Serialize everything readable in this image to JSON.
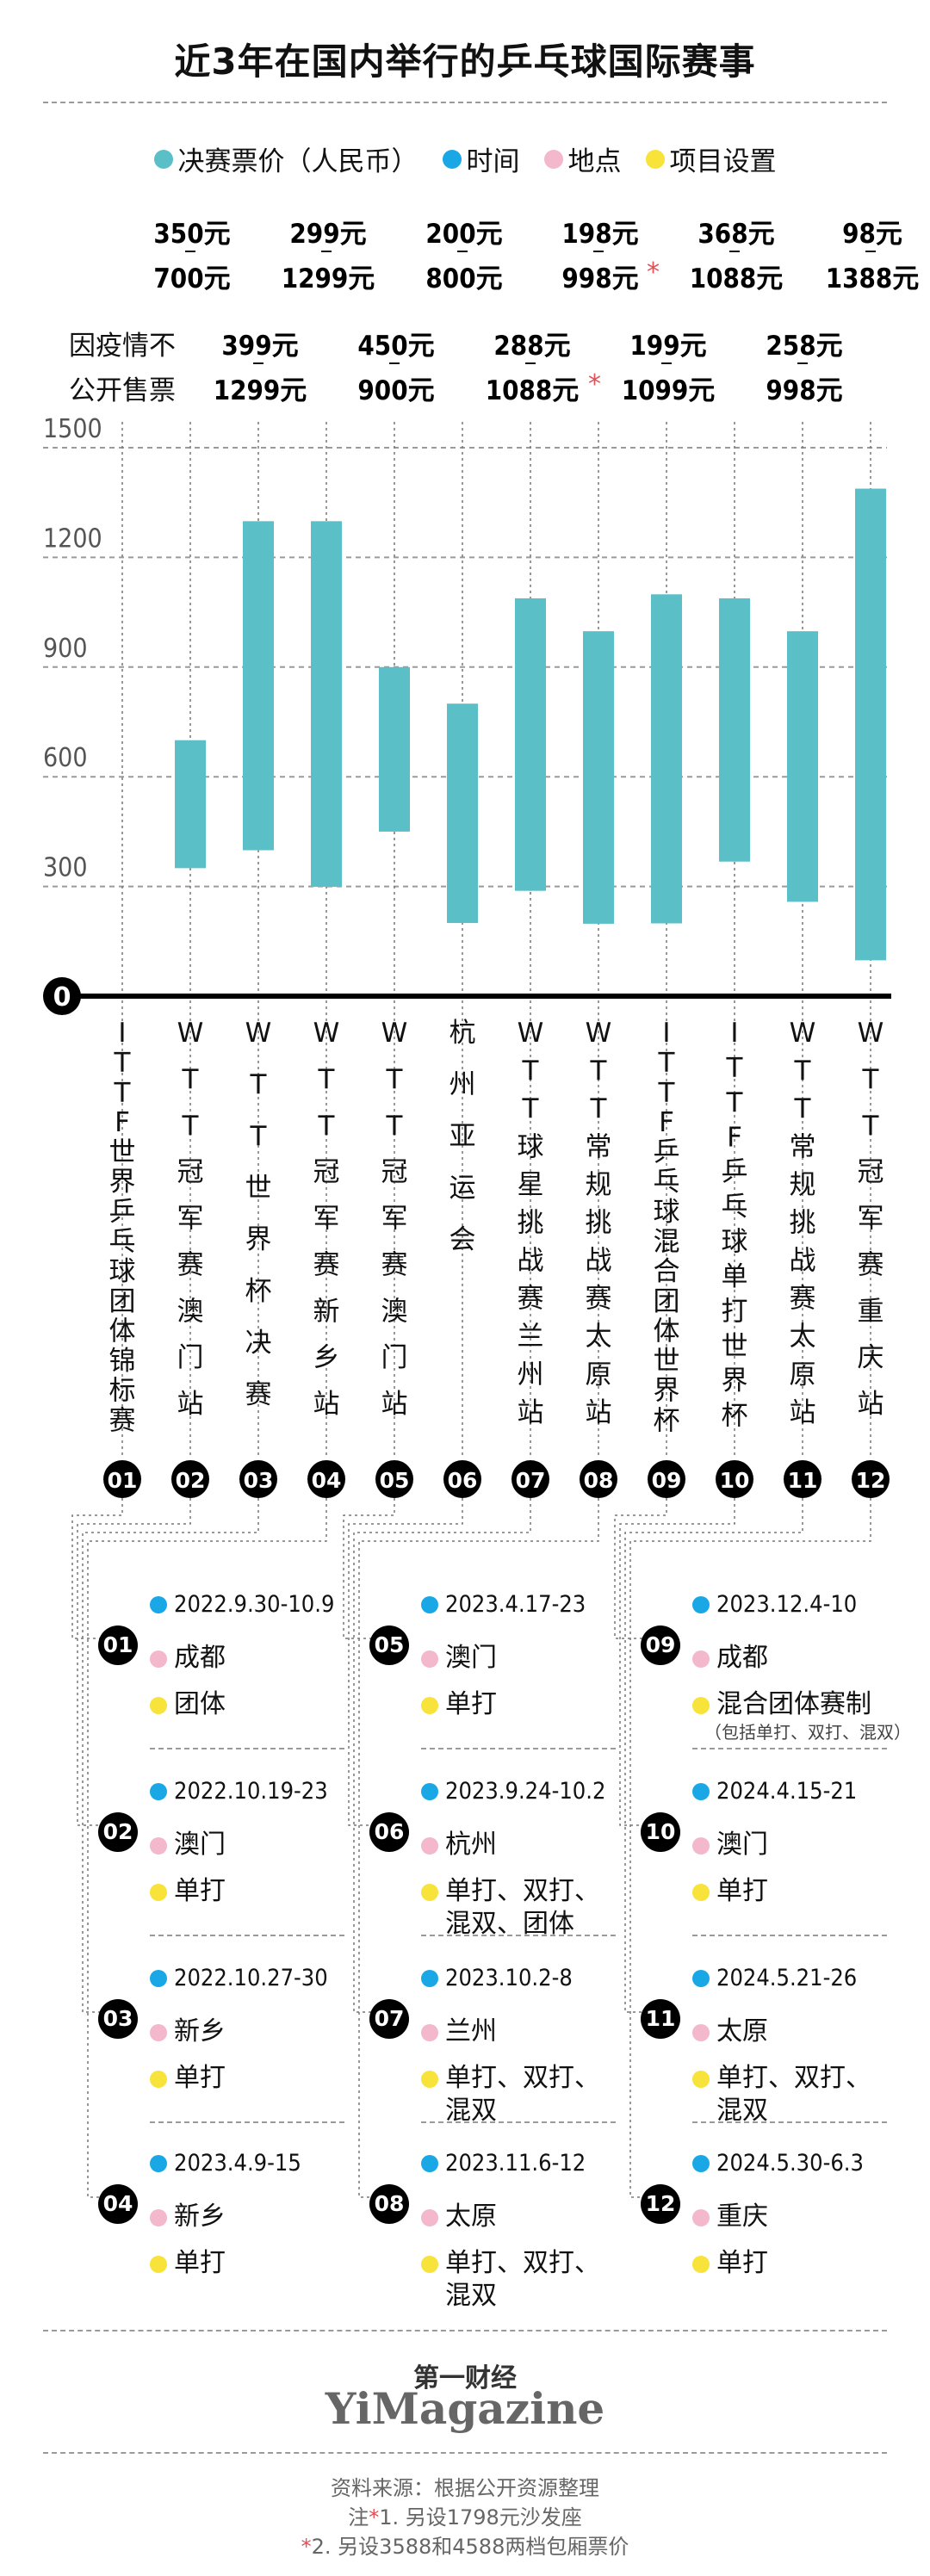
{
  "title": "近3年在国内举行的乒乓球国际赛事",
  "legend": [
    {
      "label": "决赛票价（人民币）",
      "color": "#5bbfc8"
    },
    {
      "label": "时间",
      "color": "#1aa7e6"
    },
    {
      "label": "地点",
      "color": "#f3b8cc"
    },
    {
      "label": "项目设置",
      "color": "#f7e33a"
    }
  ],
  "chart_data": {
    "type": "bar",
    "subtype": "floating-range",
    "yticks": [
      0,
      300,
      600,
      900,
      1200,
      1500
    ],
    "ylim": [
      0,
      1500
    ],
    "grid": true,
    "categories": [
      "01",
      "02",
      "03",
      "04",
      "05",
      "06",
      "07",
      "08",
      "09",
      "10",
      "11",
      "12"
    ],
    "events": [
      {
        "num": "01",
        "name": "ITTF世界乒乓球团体锦标赛",
        "low": null,
        "high": null,
        "low_label": "",
        "high_label": "",
        "note": "因疫情不公开售票",
        "star": ""
      },
      {
        "num": "02",
        "name": "WTT冠军赛澳门站",
        "low": 350,
        "high": 700,
        "low_label": "350元",
        "high_label": "700元",
        "note": "",
        "star": ""
      },
      {
        "num": "03",
        "name": "WTT世界杯决赛",
        "low": 399,
        "high": 1299,
        "low_label": "399元",
        "high_label": "1299元",
        "note": "",
        "star": ""
      },
      {
        "num": "04",
        "name": "WTT冠军赛新乡站",
        "low": 299,
        "high": 1299,
        "low_label": "299元",
        "high_label": "1299元",
        "note": "",
        "star": ""
      },
      {
        "num": "05",
        "name": "WTT冠军赛澳门站",
        "low": 450,
        "high": 900,
        "low_label": "450元",
        "high_label": "900元",
        "note": "",
        "star": ""
      },
      {
        "num": "06",
        "name": "杭州亚运会",
        "low": 200,
        "high": 800,
        "low_label": "200元",
        "high_label": "800元",
        "note": "",
        "star": ""
      },
      {
        "num": "07",
        "name": "WTT球星挑战赛兰州站",
        "low": 288,
        "high": 1088,
        "low_label": "288元",
        "high_label": "1088元",
        "note": "",
        "star": "*"
      },
      {
        "num": "08",
        "name": "WTT常规挑战赛太原站",
        "low": 198,
        "high": 998,
        "low_label": "198元",
        "high_label": "998元",
        "note": "",
        "star": "*"
      },
      {
        "num": "09",
        "name": "ITTF乒乓球混合团体世界杯",
        "low": 199,
        "high": 1099,
        "low_label": "199元",
        "high_label": "1099元",
        "note": "",
        "star": ""
      },
      {
        "num": "10",
        "name": "ITTF乒乓球单打世界杯",
        "low": 368,
        "high": 1088,
        "low_label": "368元",
        "high_label": "1088元",
        "note": "",
        "star": ""
      },
      {
        "num": "11",
        "name": "WTT常规挑战赛太原站",
        "low": 258,
        "high": 998,
        "low_label": "258元",
        "high_label": "998元",
        "note": "",
        "star": ""
      },
      {
        "num": "12",
        "name": "WTT冠军赛重庆站",
        "low": 98,
        "high": 1388,
        "low_label": "98元",
        "high_label": "1388元",
        "note": "",
        "star": ""
      }
    ]
  },
  "details": [
    {
      "num": "01",
      "date": "2022.9.30-10.9",
      "place": "成都",
      "events": "团体",
      "extra": ""
    },
    {
      "num": "02",
      "date": "2022.10.19-23",
      "place": "澳门",
      "events": "单打",
      "extra": ""
    },
    {
      "num": "03",
      "date": "2022.10.27-30",
      "place": "新乡",
      "events": "单打",
      "extra": ""
    },
    {
      "num": "04",
      "date": "2023.4.9-15",
      "place": "新乡",
      "events": "单打",
      "extra": ""
    },
    {
      "num": "05",
      "date": "2023.4.17-23",
      "place": "澳门",
      "events": "单打",
      "extra": ""
    },
    {
      "num": "06",
      "date": "2023.9.24-10.2",
      "place": "杭州",
      "events": "单打、双打、",
      "extra": "混双、团体"
    },
    {
      "num": "07",
      "date": "2023.10.2-8",
      "place": "兰州",
      "events": "单打、双打、",
      "extra": "混双"
    },
    {
      "num": "08",
      "date": "2023.11.6-12",
      "place": "太原",
      "events": "单打、双打、",
      "extra": "混双"
    },
    {
      "num": "09",
      "date": "2023.12.4-10",
      "place": "成都",
      "events": "混合团体赛制",
      "extra": "（包括单打、双打、混双）"
    },
    {
      "num": "10",
      "date": "2024.4.15-21",
      "place": "澳门",
      "events": "单打",
      "extra": ""
    },
    {
      "num": "11",
      "date": "2024.5.21-26",
      "place": "太原",
      "events": "单打、双打、",
      "extra": "混双"
    },
    {
      "num": "12",
      "date": "2024.5.30-6.3",
      "place": "重庆",
      "events": "单打",
      "extra": ""
    }
  ],
  "brand": {
    "cn": "第一财经",
    "en": "YiMagazine"
  },
  "source": "资料来源：根据公开资源整理",
  "notes": [
    {
      "mark": "*",
      "prefix": "注",
      "text": "1. 另设1798元沙发座"
    },
    {
      "mark": "*",
      "prefix": "",
      "text": "2. 另设3588和4588两档包厢票价"
    }
  ]
}
